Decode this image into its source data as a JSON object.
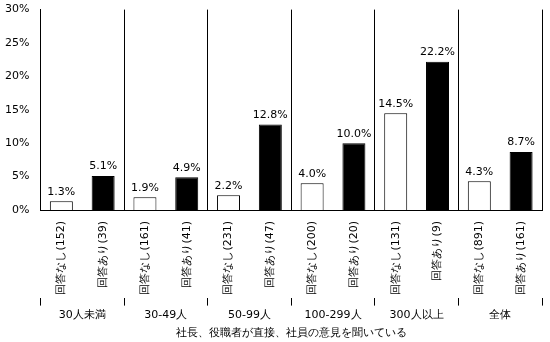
{
  "chart_data": {
    "type": "bar",
    "categories": [
      "回答なし(152)",
      "回答あり(39)",
      "回答なし(161)",
      "回答あり(41)",
      "回答なし(231)",
      "回答あり(47)",
      "回答なし(200)",
      "回答あり(20)",
      "回答なし(131)",
      "回答あり(9)",
      "回答なし(891)",
      "回答あり(161)"
    ],
    "groups": [
      "30人未満",
      "30-49人",
      "50-99人",
      "100-299人",
      "300人以上",
      "全体"
    ],
    "xlabel": "社長、役職者が直接、社員の意見を聞いている",
    "values": [
      1.3,
      5.1,
      1.9,
      4.9,
      2.2,
      12.8,
      4.0,
      10.0,
      14.5,
      22.2,
      4.3,
      8.7
    ],
    "value_labels": [
      "1.3%",
      "5.1%",
      "1.9%",
      "4.9%",
      "2.2%",
      "12.8%",
      "4.0%",
      "10.0%",
      "14.5%",
      "22.2%",
      "4.3%",
      "8.7%"
    ],
    "colors": [
      "#ffffff",
      "#000000",
      "#ffffff",
      "#000000",
      "#ffffff",
      "#000000",
      "#ffffff",
      "#000000",
      "#ffffff",
      "#000000",
      "#ffffff",
      "#000000"
    ],
    "ylim": [
      0,
      30
    ],
    "yticks": [
      {
        "value": 0,
        "label": "0%"
      },
      {
        "value": 5,
        "label": "5%"
      },
      {
        "value": 10,
        "label": "10%"
      },
      {
        "value": 15,
        "label": "15%"
      },
      {
        "value": 20,
        "label": "20%"
      },
      {
        "value": 25,
        "label": "25%"
      },
      {
        "value": 30,
        "label": "30%"
      }
    ],
    "grid": false,
    "data_labels": true
  }
}
